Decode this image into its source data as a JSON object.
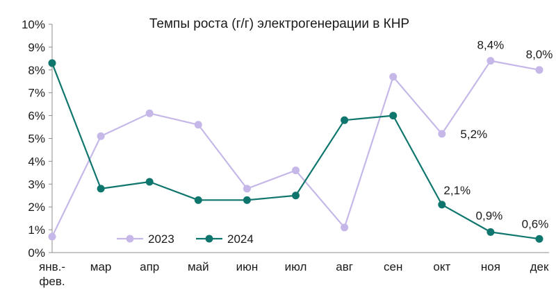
{
  "chart_data": {
    "type": "line",
    "title": "Темпы роста (г/г) электрогенерации в КНР",
    "xlabel": "",
    "ylabel": "",
    "categories": [
      [
        "янв.-",
        "фев."
      ],
      [
        "мар"
      ],
      [
        "апр"
      ],
      [
        "май"
      ],
      [
        "июн"
      ],
      [
        "июл"
      ],
      [
        "авг"
      ],
      [
        "сен"
      ],
      [
        "окт"
      ],
      [
        "ноя"
      ],
      [
        "дек"
      ]
    ],
    "y_ticks": [
      "0%",
      "1%",
      "2%",
      "3%",
      "4%",
      "5%",
      "6%",
      "7%",
      "8%",
      "9%",
      "10%"
    ],
    "ylim": [
      0,
      10
    ],
    "grid": false,
    "legend_position": "bottom-left",
    "series": [
      {
        "name": "2023",
        "color": "#c5b8e8",
        "values": [
          0.7,
          5.1,
          6.1,
          5.6,
          2.8,
          3.6,
          1.1,
          7.7,
          5.2,
          8.4,
          8.0
        ],
        "labels": [
          null,
          null,
          null,
          null,
          null,
          null,
          null,
          null,
          "5,2%",
          "8,4%",
          "8,0%"
        ]
      },
      {
        "name": "2024",
        "color": "#0f766e",
        "values": [
          8.3,
          2.8,
          3.1,
          2.3,
          2.3,
          2.5,
          5.8,
          6.0,
          2.1,
          0.9,
          0.6
        ],
        "labels": [
          null,
          null,
          null,
          null,
          null,
          null,
          null,
          null,
          "2,1%",
          "0,9%",
          "0,6%"
        ]
      }
    ]
  }
}
